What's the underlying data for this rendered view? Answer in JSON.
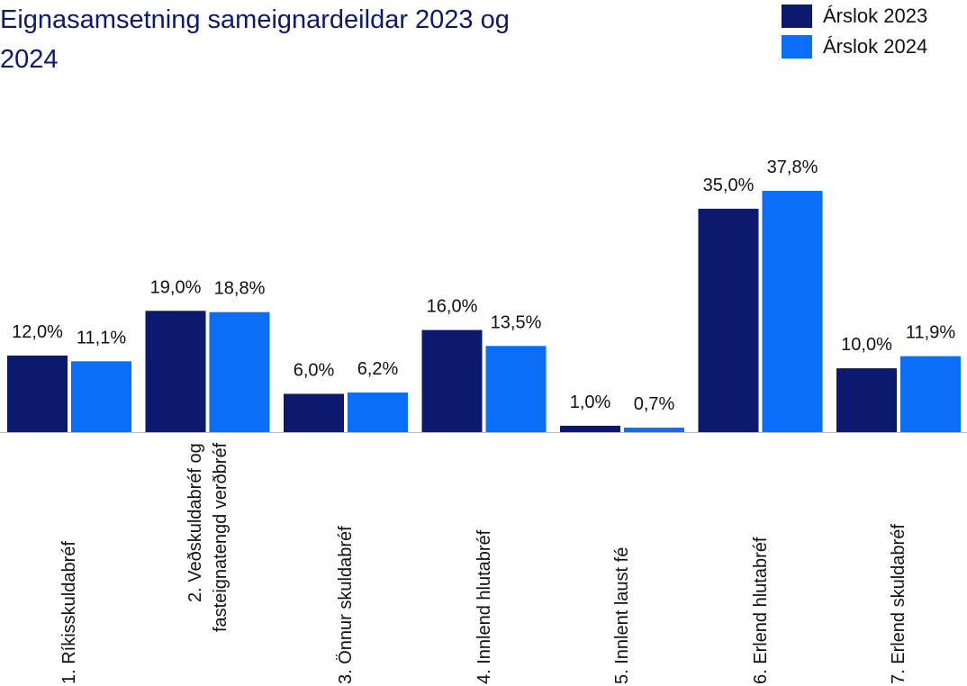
{
  "chart_data": {
    "type": "bar",
    "title": "Eignasamsetning sameignardeildar 2023 og 2024",
    "categories": [
      "1. Ríkisskuldabréf",
      "2. Veðskuldabréf og fasteignatengd verðbréf",
      "3. Önnur skuldabréf",
      "4. Innlend hlutabréf",
      "5. Innlent laust fé",
      "6. Erlend hlutabréf",
      "7. Erlend skuldabréf"
    ],
    "series": [
      {
        "name": "Árslok 2023",
        "color": "#0c1a6e",
        "values": [
          12.0,
          19.0,
          6.0,
          16.0,
          1.0,
          35.0,
          10.0
        ],
        "value_labels": [
          "12,0%",
          "19,0%",
          "6,0%",
          "16,0%",
          "1,0%",
          "35,0%",
          "10,0%"
        ]
      },
      {
        "name": "Árslok 2024",
        "color": "#0b6ef6",
        "values": [
          11.1,
          18.8,
          6.2,
          13.5,
          0.7,
          37.8,
          11.9
        ],
        "value_labels": [
          "11,1%",
          "18,8%",
          "6,2%",
          "13,5%",
          "0,7%",
          "37,8%",
          "11,9%"
        ]
      }
    ],
    "legend": "top-right"
  }
}
